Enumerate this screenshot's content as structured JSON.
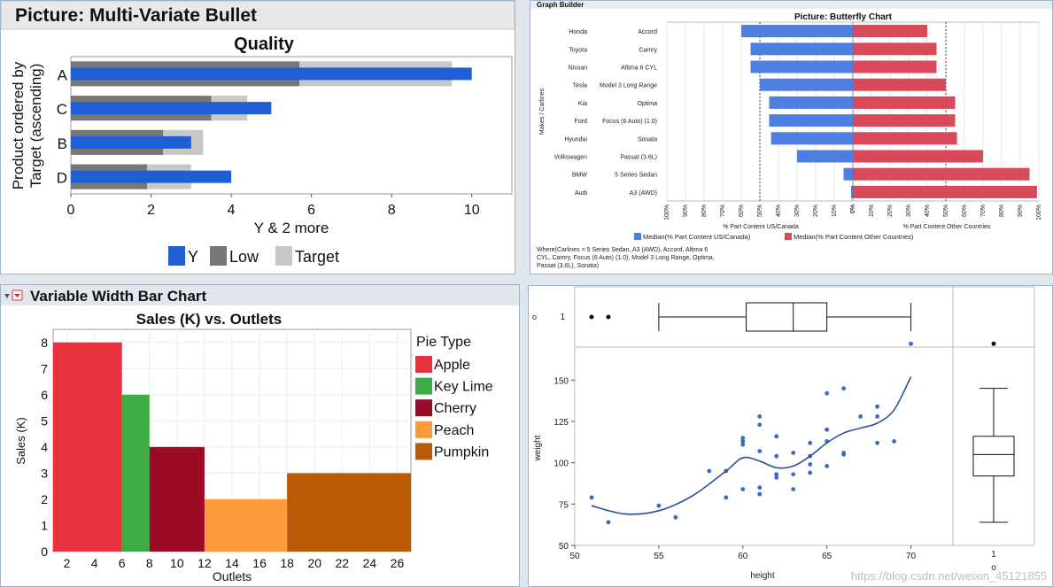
{
  "chart_data": [
    {
      "type": "bar",
      "subtype": "bullet",
      "panel_title": "Picture: Multi-Variate Bullet",
      "title": "Quality",
      "xlabel": "Y & 2 more",
      "ylabel": "Product ordered by Target (ascending)",
      "categories": [
        "A",
        "C",
        "B",
        "D"
      ],
      "xlim": [
        0,
        11
      ],
      "xticks": [
        0,
        2,
        4,
        6,
        8,
        10
      ],
      "series": [
        {
          "name": "Target",
          "values": [
            9.5,
            4.4,
            3.3,
            3.0
          ],
          "color": "#c8c8c8"
        },
        {
          "name": "Low",
          "values": [
            5.7,
            3.5,
            2.3,
            1.9
          ],
          "color": "#777777"
        },
        {
          "name": "Y",
          "values": [
            10.0,
            5.0,
            3.0,
            4.0
          ],
          "color": "#1f5fd6"
        }
      ],
      "legend_position": "bottom"
    },
    {
      "type": "bar",
      "subtype": "butterfly",
      "panel_header": "Graph Builder",
      "title": "Picture: Butterfly Chart",
      "ylabel": "Makes / Carlines",
      "xlabel_left": "% Part Content US/Canada",
      "xlabel_right": "% Part Content Other Countries",
      "makes": [
        "Honda",
        "Toyota",
        "Nissan",
        "Tesla",
        "Kia",
        "Ford",
        "Hyundai",
        "Volkswagen",
        "BMW",
        "Audi"
      ],
      "carlines": [
        "Accord",
        "Camry",
        "Altima 6 CYL",
        "Model 3 Long Range",
        "Optima",
        "Focus (6 Auto) (1.0)",
        "Sonata",
        "Passat (3.6L)",
        "5 Series Sedan",
        "A3 (AWD)"
      ],
      "series": [
        {
          "name": "Median(% Part Content US/Canada)",
          "values": [
            60,
            55,
            55,
            50,
            45,
            45,
            44,
            30,
            5,
            1
          ],
          "color": "#4e7fe0"
        },
        {
          "name": "Median(% Part Content Other Countries)",
          "values": [
            40,
            45,
            45,
            50,
            55,
            55,
            56,
            70,
            95,
            99
          ],
          "color": "#d9495a"
        }
      ],
      "left_ticks": [
        "100%",
        "90%",
        "80%",
        "70%",
        "60%",
        "50%",
        "40%",
        "30%",
        "20%",
        "10%",
        "0%"
      ],
      "right_ticks": [
        "0%",
        "10%",
        "20%",
        "30%",
        "40%",
        "50%",
        "60%",
        "70%",
        "80%",
        "90%",
        "100%"
      ],
      "where_text": [
        "Where(Carlines = 5 Series Sedan, A3 (AWD), Accord, Altima 6",
        "CYL, Camry, Focus (6 Auto) (1.0), Model 3 Long Range, Optima,",
        "Passat (3.6L), Sonata)"
      ],
      "legend_position": "bottom"
    },
    {
      "type": "bar",
      "subtype": "variable-width",
      "panel_title": "Variable Width Bar Chart",
      "title": "Sales (K) vs. Outlets",
      "xlabel": "Outlets",
      "ylabel": "Sales (K)",
      "legend_title": "Pie Type",
      "xlim": [
        1,
        27
      ],
      "ylim": [
        0,
        8.5
      ],
      "xticks": [
        2,
        4,
        6,
        8,
        10,
        12,
        14,
        16,
        18,
        20,
        22,
        24,
        26
      ],
      "yticks": [
        0,
        1,
        2,
        3,
        4,
        5,
        6,
        7,
        8
      ],
      "bars": [
        {
          "name": "Apple",
          "x0": 1,
          "x1": 6,
          "value": 8,
          "color": "#e8303e"
        },
        {
          "name": "Key Lime",
          "x0": 6,
          "x1": 8,
          "value": 6,
          "color": "#3cad43"
        },
        {
          "name": "Cherry",
          "x0": 8,
          "x1": 12,
          "value": 4,
          "color": "#9c0b25"
        },
        {
          "name": "Peach",
          "x0": 12,
          "x1": 18,
          "value": 2,
          "color": "#ff9a3a"
        },
        {
          "name": "Pumpkin",
          "x0": 18,
          "x1": 27,
          "value": 3,
          "color": "#bb5a05"
        }
      ],
      "legend_position": "right"
    },
    {
      "type": "scatter",
      "subtype": "scatter-with-marginal-boxplots",
      "xlabel": "height",
      "ylabel": "weight",
      "xlim": [
        50,
        72.5
      ],
      "ylim": [
        50,
        170
      ],
      "xticks": [
        50,
        55,
        60,
        65,
        70
      ],
      "yticks": [
        50,
        75,
        100,
        125,
        150
      ],
      "points": [
        [
          51,
          79
        ],
        [
          52,
          64
        ],
        [
          55,
          74
        ],
        [
          56,
          67
        ],
        [
          58,
          95
        ],
        [
          59,
          79
        ],
        [
          59,
          95
        ],
        [
          60,
          84
        ],
        [
          60,
          111
        ],
        [
          60,
          113
        ],
        [
          60,
          115
        ],
        [
          61,
          81
        ],
        [
          61,
          85
        ],
        [
          61,
          107
        ],
        [
          61,
          123
        ],
        [
          61,
          128
        ],
        [
          62,
          91
        ],
        [
          62,
          93
        ],
        [
          62,
          104
        ],
        [
          62,
          116
        ],
        [
          63,
          84
        ],
        [
          63,
          93
        ],
        [
          63,
          106
        ],
        [
          64,
          94
        ],
        [
          64,
          99
        ],
        [
          64,
          112
        ],
        [
          64,
          104
        ],
        [
          65,
          98
        ],
        [
          65,
          113
        ],
        [
          65,
          120
        ],
        [
          65,
          142
        ],
        [
          66,
          105
        ],
        [
          66,
          106
        ],
        [
          66,
          145
        ],
        [
          67,
          128
        ],
        [
          68,
          112
        ],
        [
          68,
          128
        ],
        [
          68,
          134
        ],
        [
          69,
          113
        ],
        [
          70,
          172
        ]
      ],
      "smoother": [
        [
          51,
          74
        ],
        [
          53,
          69
        ],
        [
          55,
          71
        ],
        [
          57,
          80
        ],
        [
          59,
          95
        ],
        [
          60,
          103
        ],
        [
          61,
          101
        ],
        [
          62,
          97
        ],
        [
          63,
          98
        ],
        [
          64,
          104
        ],
        [
          65,
          112
        ],
        [
          66,
          118
        ],
        [
          67,
          121
        ],
        [
          68,
          124
        ],
        [
          69,
          132
        ],
        [
          70,
          152
        ]
      ],
      "x_boxplot": {
        "min": 55,
        "q1": 60.2,
        "median": 63,
        "q3": 65,
        "max": 70,
        "outliers": [
          51,
          52
        ]
      },
      "y_boxplot": {
        "min": 64,
        "q1": 92,
        "median": 105,
        "q3": 116,
        "max": 145,
        "outliers": [
          172
        ]
      },
      "boxplot_label": "1",
      "side_label": "o",
      "point_color": "#3a69c8",
      "line_color": "#2c4fa0"
    }
  ],
  "watermark": "https://blog.csdn.net/weixin_45121855"
}
